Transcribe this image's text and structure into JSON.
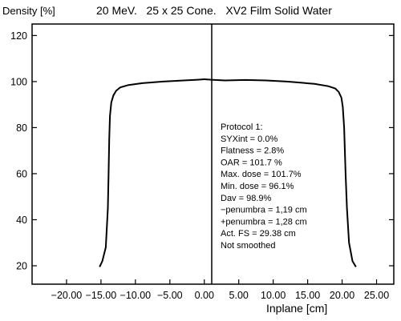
{
  "chart_data": {
    "type": "line",
    "title": "20 MeV.   25 x 25 Cone.   XV2 Film Solid Water",
    "ylabel": "Density [%]",
    "xlabel": "Inplane [cm]",
    "xlim": [
      -25,
      27.5
    ],
    "ylim": [
      12,
      125
    ],
    "yticks": [
      "20",
      "40",
      "60",
      "80",
      "100",
      "120"
    ],
    "xticks": [
      "-20.00",
      "-15.00",
      "-10.00",
      "-5.00",
      "0.00",
      "5.00",
      "10.00",
      "15.00",
      "20.00",
      "25.00"
    ],
    "grid": false,
    "series": [
      {
        "x": [
          -15.2,
          -14.8,
          -14.3,
          -14.0,
          -13.9,
          -13.8,
          -13.7,
          -13.5,
          -13.2,
          -12.8,
          -12.2,
          -11.0,
          -9.0,
          -6.0,
          -3.0,
          -1.0,
          0.0,
          1.0,
          3.0,
          6.0,
          9.0,
          12.0,
          14.0,
          16.0,
          18.0,
          19.0,
          19.5,
          19.9,
          20.1,
          20.3,
          20.4,
          20.5,
          20.7,
          21.0,
          21.5,
          22.0
        ],
        "y": [
          19.5,
          22,
          28,
          45,
          60,
          75,
          85,
          91,
          94,
          96,
          97.5,
          98.5,
          99.3,
          100,
          100.5,
          100.8,
          101,
          100.8,
          100.5,
          100.7,
          100.5,
          100,
          99.5,
          99,
          98,
          97,
          95.5,
          93,
          89,
          80,
          70,
          60,
          45,
          30,
          22,
          19.5
        ]
      }
    ],
    "annotations": [
      "Protocol 1:",
      "SYXint = 0.0%",
      "Flatness = 2.8%",
      "OAR = 101.7 %",
      "Max. dose = 101.7%",
      "Min. dose = 96.1%",
      "Dav = 98.9%",
      "−penumbra = 1,19 cm",
      "+penumbra = 1,28 cm",
      "Act. FS = 29.38 cm",
      "Not smoothed"
    ]
  }
}
